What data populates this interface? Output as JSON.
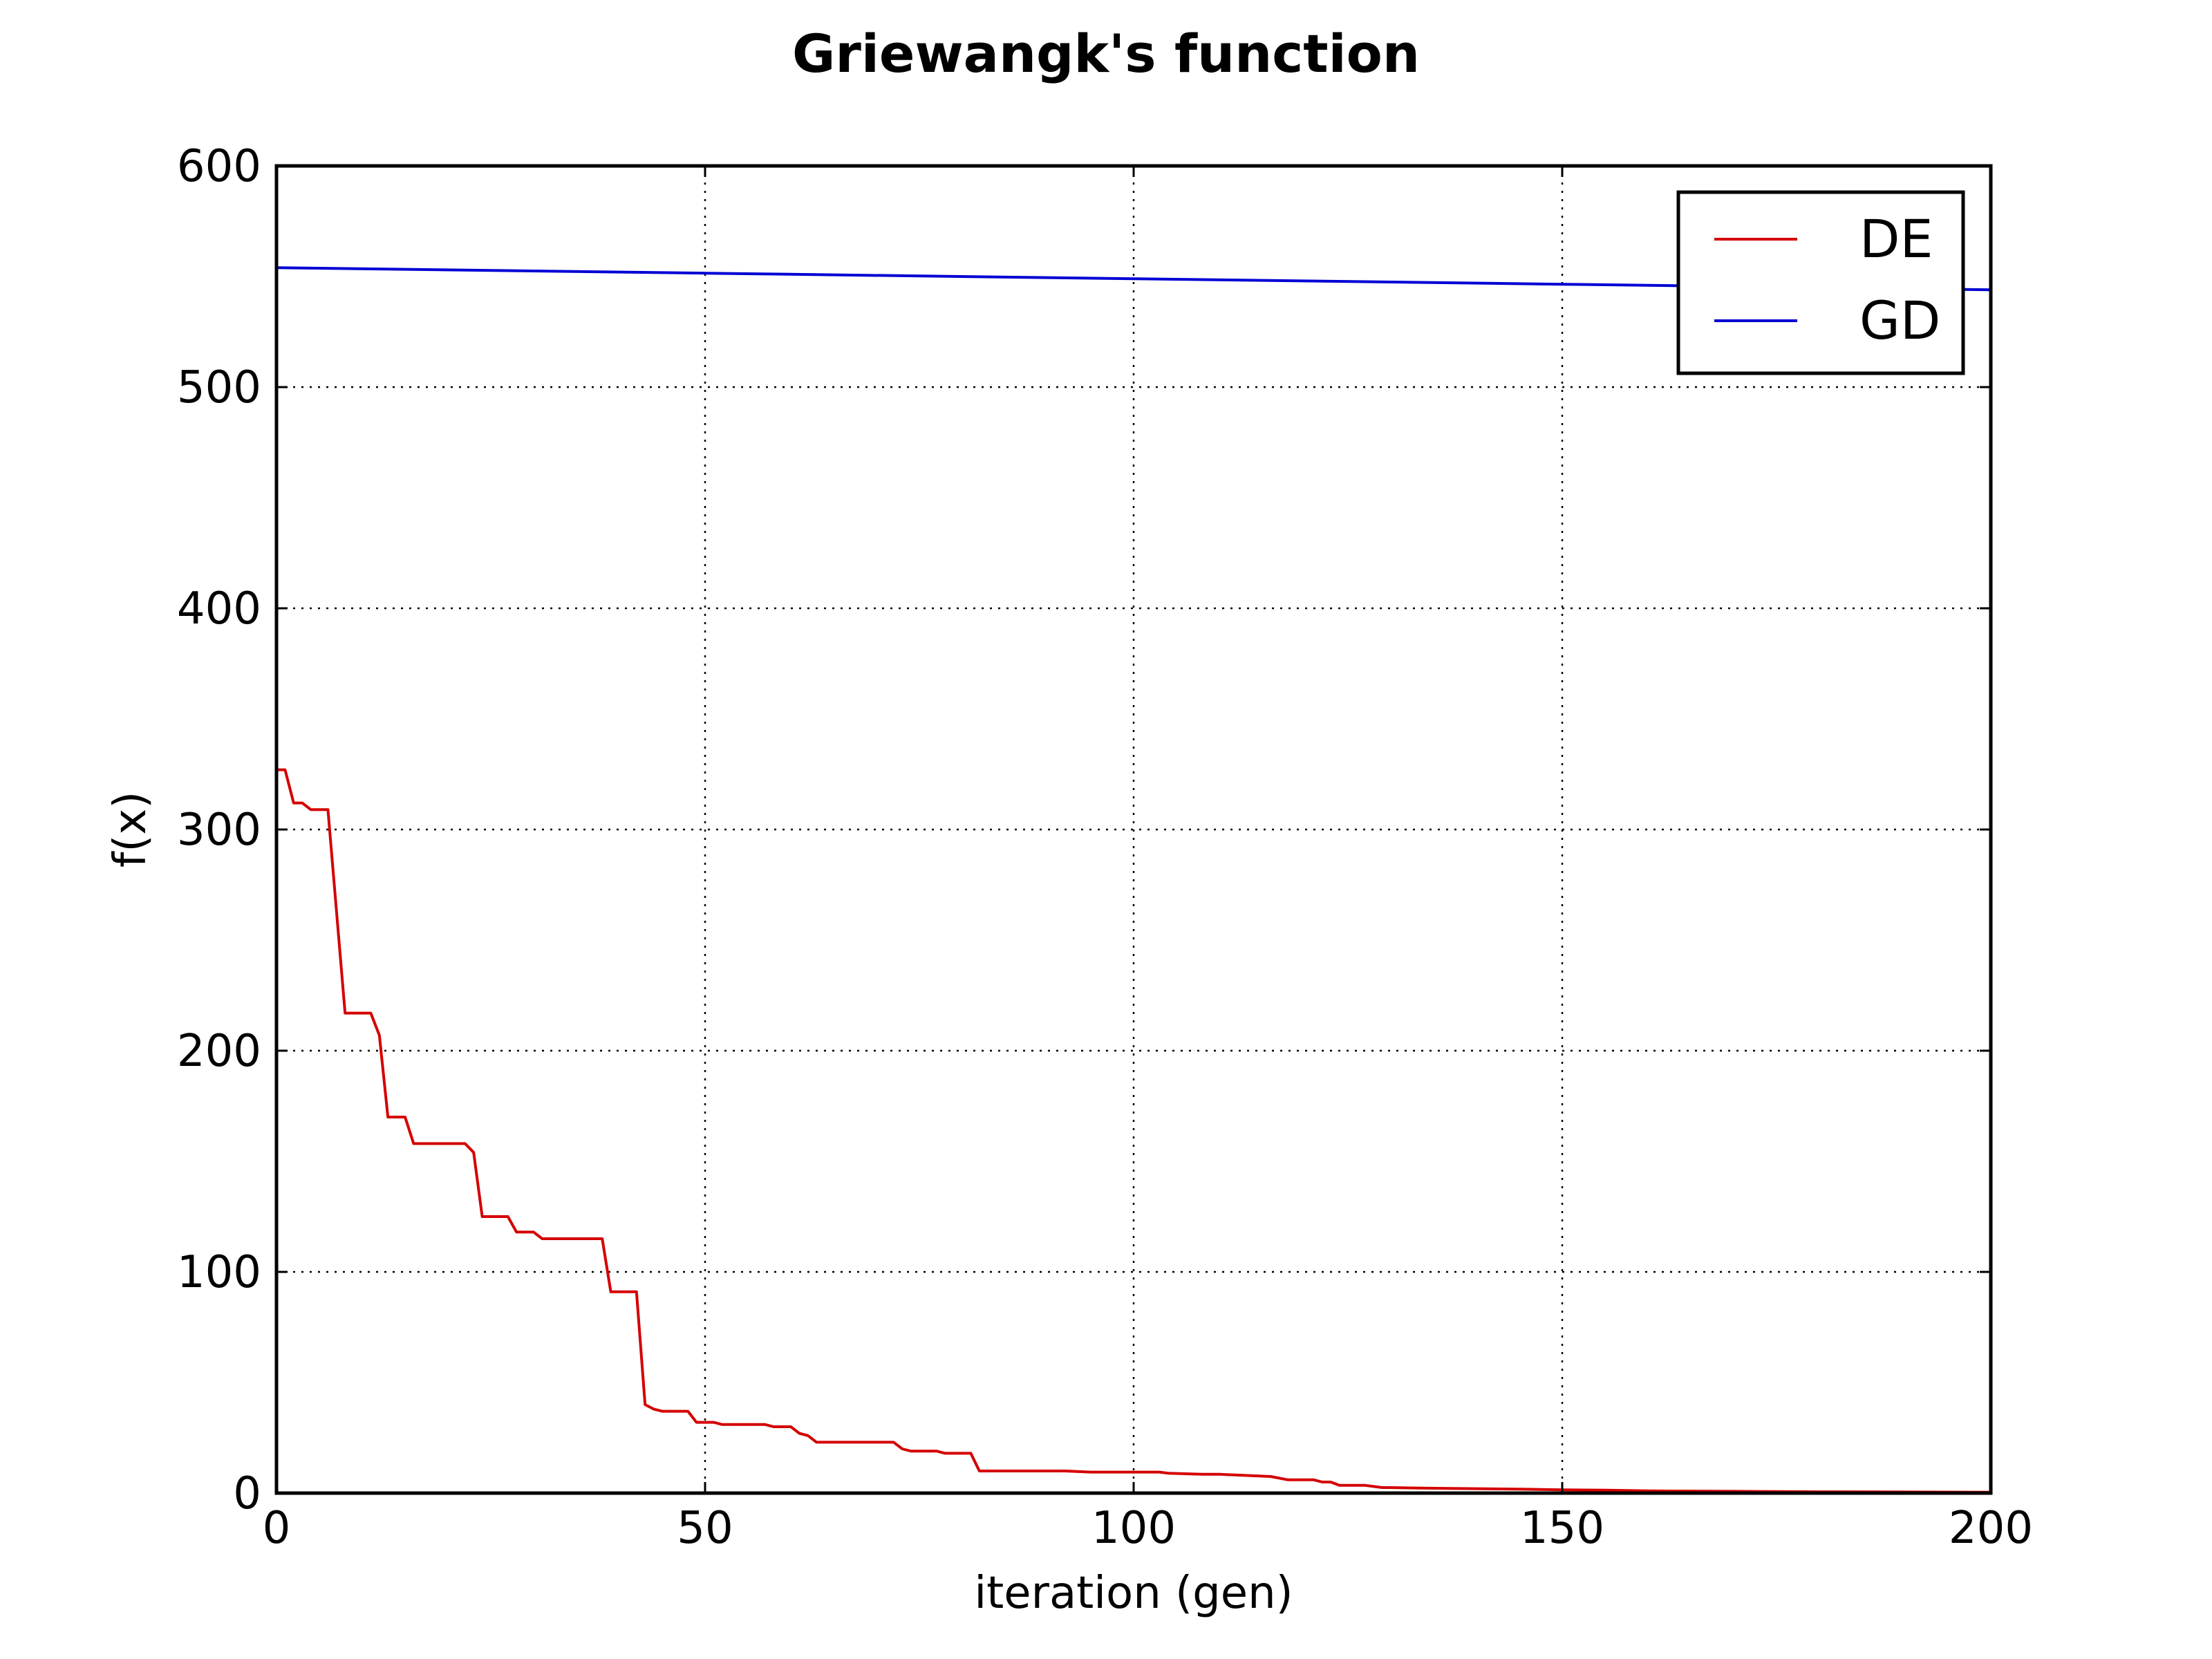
{
  "chart_data": {
    "type": "line",
    "title": "Griewangk's function",
    "xlabel": "iteration (gen)",
    "ylabel": "f(x)",
    "xlim": [
      0,
      200
    ],
    "ylim": [
      0,
      600
    ],
    "xticks": [
      0,
      50,
      100,
      150,
      200
    ],
    "yticks": [
      0,
      100,
      200,
      300,
      400,
      500,
      600
    ],
    "xtick_labels": [
      "0",
      "50",
      "100",
      "150",
      "200"
    ],
    "ytick_labels": [
      "0",
      "100",
      "200",
      "300",
      "400",
      "500",
      "600"
    ],
    "grid": true,
    "legend_position": "top-right",
    "series": [
      {
        "name": "DE",
        "color": "#d40000",
        "x": [
          0,
          1,
          2,
          3,
          4,
          5,
          6,
          8,
          9,
          10,
          11,
          12,
          13,
          14,
          15,
          16,
          17,
          18,
          19,
          20,
          21,
          22,
          23,
          24,
          25,
          26,
          27,
          28,
          29,
          30,
          31,
          32,
          33,
          34,
          35,
          36,
          37,
          38,
          39,
          40,
          41,
          42,
          43,
          44,
          45,
          46,
          47,
          48,
          49,
          50,
          51,
          52,
          53,
          54,
          55,
          56,
          57,
          58,
          59,
          60,
          61,
          62,
          63,
          64,
          65,
          66,
          67,
          68,
          69,
          70,
          71,
          72,
          73,
          74,
          75,
          76,
          77,
          78,
          79,
          80,
          81,
          82,
          85,
          88,
          91,
          92,
          95,
          100,
          103,
          104,
          108,
          110,
          113,
          116,
          118,
          121,
          122,
          123,
          124,
          127,
          128,
          129,
          130,
          135,
          140,
          145,
          150,
          155,
          160,
          170,
          180,
          190,
          200
        ],
        "values": [
          327,
          327,
          312,
          312,
          309,
          309,
          309,
          217,
          217,
          217,
          217,
          207,
          170,
          170,
          170,
          158,
          158,
          158,
          158,
          158,
          158,
          158,
          154,
          125,
          125,
          125,
          125,
          118,
          118,
          118,
          115,
          115,
          115,
          115,
          115,
          115,
          115,
          115,
          91,
          91,
          91,
          91,
          40,
          38,
          37,
          37,
          37,
          37,
          32,
          32,
          32,
          31,
          31,
          31,
          31,
          31,
          31,
          30,
          30,
          30,
          27,
          26,
          23,
          23,
          23,
          23,
          23,
          23,
          23,
          23,
          23,
          23,
          20,
          19,
          19,
          19,
          19,
          18,
          18,
          18,
          18,
          10,
          10,
          10,
          10,
          10,
          9.5,
          9.5,
          9.5,
          9,
          8.5,
          8.5,
          8,
          7.5,
          6,
          6,
          5,
          5,
          3.5,
          3.5,
          3,
          2.5,
          2.5,
          2.2,
          2,
          1.8,
          1.5,
          1.3,
          1,
          0.8,
          0.6,
          0.5,
          0.4
        ]
      },
      {
        "name": "GD",
        "color": "#0000d4",
        "x": [
          0,
          50,
          100,
          150,
          200
        ],
        "values": [
          554,
          551.5,
          549,
          546.5,
          544
        ]
      }
    ]
  }
}
